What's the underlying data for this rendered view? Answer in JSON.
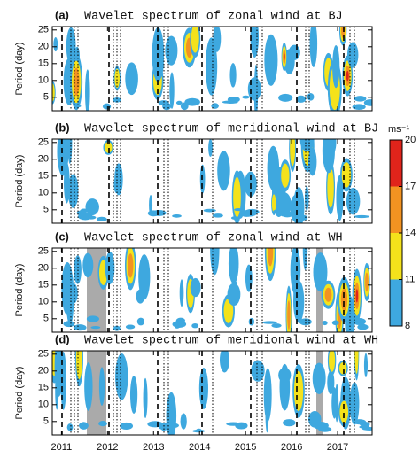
{
  "chart_data": [
    {
      "type": "contour",
      "panel_label": "(a)",
      "title": "Wavelet spectrum of zonal wind at BJ",
      "ylabel": "Period (day)",
      "ylim": [
        1,
        26
      ],
      "yticks": [
        5,
        10,
        15,
        20,
        25
      ],
      "xlim": [
        2010.8,
        2017.75
      ],
      "xticks": [
        2011,
        2012,
        2013,
        2014,
        2015,
        2016,
        2017
      ]
    },
    {
      "type": "contour",
      "panel_label": "(b)",
      "title": "Wavelet spectrum of meridional wind at BJ",
      "ylabel": "Period (day)",
      "ylim": [
        1,
        26
      ],
      "yticks": [
        5,
        10,
        15,
        20,
        25
      ],
      "xlim": [
        2010.8,
        2017.75
      ],
      "xticks": [
        2011,
        2012,
        2013,
        2014,
        2015,
        2016,
        2017
      ]
    },
    {
      "type": "contour",
      "panel_label": "(c)",
      "title": "Wavelet spectrum of zonal wind at WH",
      "ylabel": "Period (day)",
      "ylim": [
        1,
        26
      ],
      "yticks": [
        5,
        10,
        15,
        20,
        25
      ],
      "xlim": [
        2010.8,
        2017.75
      ],
      "xticks": [
        2011,
        2012,
        2013,
        2014,
        2015,
        2016,
        2017
      ]
    },
    {
      "type": "contour",
      "panel_label": "(d)",
      "title": "Wavelet spectrum of meridional wind at WH",
      "ylabel": "Period (day)",
      "ylim": [
        1,
        26
      ],
      "yticks": [
        5,
        10,
        15,
        20,
        25
      ],
      "xlim": [
        2010.8,
        2017.75
      ],
      "xticks": [
        2011,
        2012,
        2013,
        2014,
        2015,
        2016,
        2017
      ]
    }
  ],
  "colorbar": {
    "label": "ms⁻¹",
    "ticks": [
      8,
      11,
      14,
      17,
      20
    ],
    "lim": [
      8,
      20
    ],
    "colors": [
      "#3ea8df",
      "#f4e21b",
      "#f39321",
      "#e0241b"
    ]
  }
}
